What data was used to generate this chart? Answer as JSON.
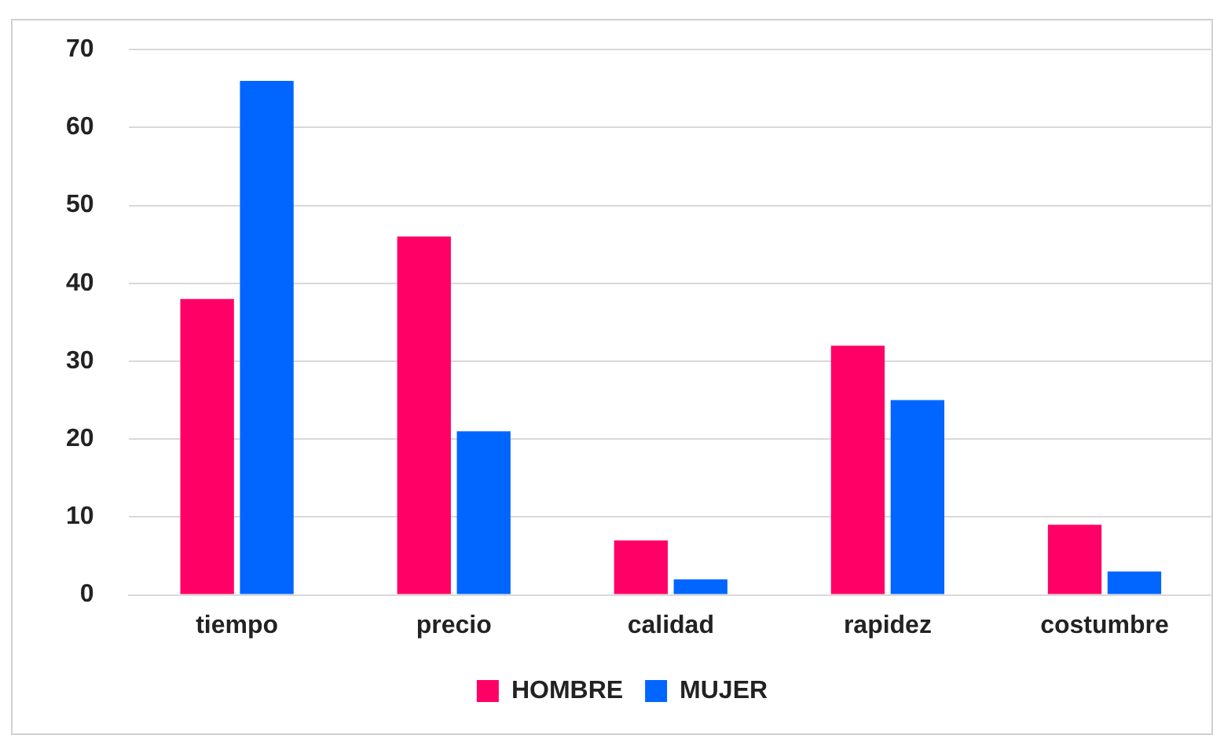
{
  "chart_data": {
    "type": "bar",
    "categories": [
      "tiempo",
      "precio",
      "calidad",
      "rapidez",
      "costumbre"
    ],
    "series": [
      {
        "name": "HOMBRE",
        "color": "#ff0066",
        "values": [
          38,
          46,
          7,
          32,
          9
        ]
      },
      {
        "name": "MUJER",
        "color": "#0066ff",
        "values": [
          66,
          21,
          2,
          25,
          3
        ]
      }
    ],
    "ylim": [
      0,
      70
    ],
    "yticks": [
      0,
      10,
      20,
      30,
      40,
      50,
      60,
      70
    ],
    "grid": "y",
    "legend": "bottom"
  }
}
